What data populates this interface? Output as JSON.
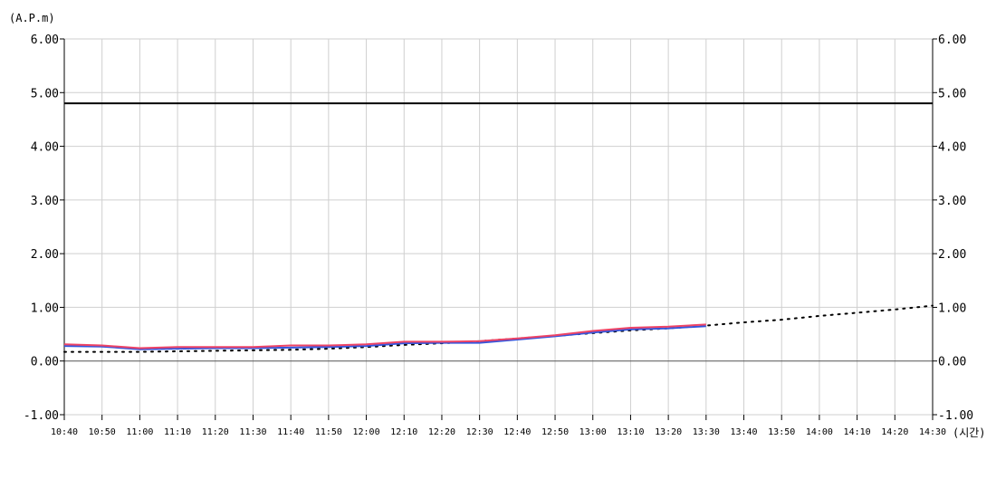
{
  "chart_data": {
    "type": "line",
    "y_unit_label": "(A.P.m)",
    "x_unit_label": "(시간)",
    "ylim": [
      -1.0,
      6.0
    ],
    "y_ticks": [
      "6.00",
      "5.00",
      "4.00",
      "3.00",
      "2.00",
      "1.00",
      "0.00",
      "-1.00"
    ],
    "y_tick_values": [
      6,
      5,
      4,
      3,
      2,
      1,
      0,
      -1
    ],
    "x": [
      "10:40",
      "10:50",
      "11:00",
      "11:10",
      "11:20",
      "11:30",
      "11:40",
      "11:50",
      "12:00",
      "12:10",
      "12:20",
      "12:30",
      "12:40",
      "12:50",
      "13:00",
      "13:10",
      "13:20",
      "13:30",
      "13:40",
      "13:50",
      "14:00",
      "14:10",
      "14:20",
      "14:30"
    ],
    "grid": true,
    "reference_line": {
      "value": 4.8,
      "color": "#000000"
    },
    "series": [
      {
        "style": "dotted",
        "color": "#000000",
        "values": [
          0.17,
          0.17,
          0.17,
          0.18,
          0.19,
          0.2,
          0.21,
          0.23,
          0.26,
          0.3,
          0.33,
          0.37,
          0.42,
          0.47,
          0.52,
          0.57,
          0.61,
          0.66,
          0.72,
          0.77,
          0.84,
          0.9,
          0.96,
          1.03
        ]
      },
      {
        "style": "solid",
        "color": "#3355dd",
        "values": [
          0.28,
          0.27,
          0.22,
          0.23,
          0.24,
          0.24,
          0.25,
          0.26,
          0.28,
          0.33,
          0.34,
          0.34,
          0.4,
          0.46,
          0.53,
          0.59,
          0.61,
          0.65,
          null,
          null,
          null,
          null,
          null,
          null
        ]
      },
      {
        "style": "solid",
        "color": "#ee4466",
        "values": [
          0.31,
          0.29,
          0.24,
          0.26,
          0.26,
          0.26,
          0.29,
          0.29,
          0.31,
          0.36,
          0.36,
          0.37,
          0.42,
          0.48,
          0.56,
          0.62,
          0.64,
          0.68,
          null,
          null,
          null,
          null,
          null,
          null
        ]
      }
    ]
  }
}
